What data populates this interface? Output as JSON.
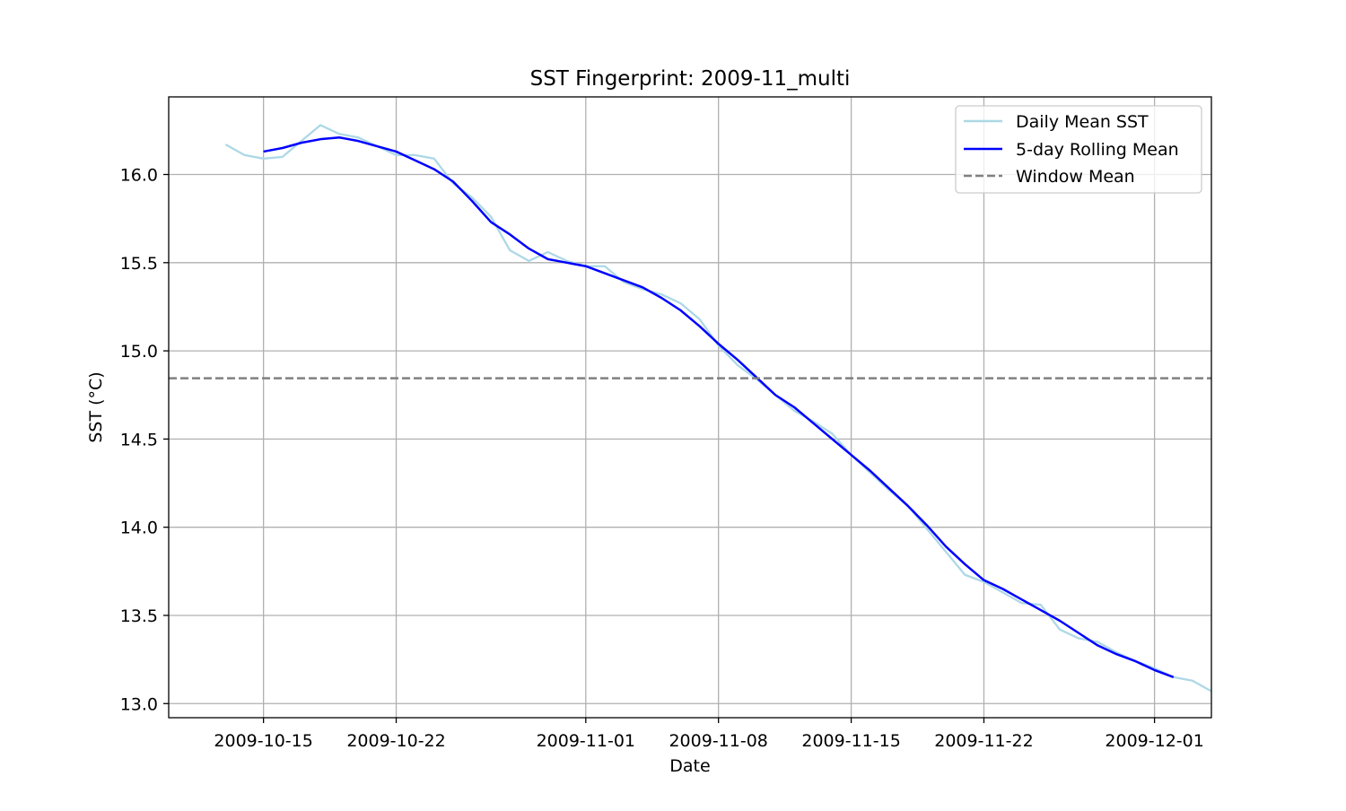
{
  "chart_data": {
    "type": "line",
    "title": "SST Fingerprint: 2009-11_multi",
    "xlabel": "Date",
    "ylabel": "SST (°C)",
    "xlim": [
      "2009-10-10",
      "2009-12-04"
    ],
    "ylim": [
      12.92,
      16.44
    ],
    "x_ticks": [
      "2009-10-15",
      "2009-10-22",
      "2009-11-01",
      "2009-11-08",
      "2009-11-15",
      "2009-11-22",
      "2009-12-01"
    ],
    "y_ticks": [
      13.0,
      13.5,
      14.0,
      14.5,
      15.0,
      15.5,
      16.0
    ],
    "y_tick_labels": [
      "13.0",
      "13.5",
      "14.0",
      "14.5",
      "15.0",
      "15.5",
      "16.0"
    ],
    "grid": true,
    "legend_position": "top-right",
    "series": [
      {
        "name": "Daily Mean SST",
        "color": "#add8e6",
        "style": "solid",
        "x": [
          "2009-10-13",
          "2009-10-14",
          "2009-10-15",
          "2009-10-16",
          "2009-10-17",
          "2009-10-18",
          "2009-10-19",
          "2009-10-20",
          "2009-10-21",
          "2009-10-22",
          "2009-10-23",
          "2009-10-24",
          "2009-10-25",
          "2009-10-26",
          "2009-10-27",
          "2009-10-28",
          "2009-10-29",
          "2009-10-30",
          "2009-10-31",
          "2009-11-01",
          "2009-11-02",
          "2009-11-03",
          "2009-11-04",
          "2009-11-05",
          "2009-11-06",
          "2009-11-07",
          "2009-11-08",
          "2009-11-09",
          "2009-11-10",
          "2009-11-11",
          "2009-11-12",
          "2009-11-13",
          "2009-11-14",
          "2009-11-15",
          "2009-11-16",
          "2009-11-17",
          "2009-11-18",
          "2009-11-19",
          "2009-11-20",
          "2009-11-21",
          "2009-11-22",
          "2009-11-23",
          "2009-11-24",
          "2009-11-25",
          "2009-11-26",
          "2009-11-27",
          "2009-11-28",
          "2009-11-29",
          "2009-11-30",
          "2009-12-01",
          "2009-12-02",
          "2009-12-03",
          "2009-12-04"
        ],
        "values": [
          16.17,
          16.11,
          16.09,
          16.1,
          16.19,
          16.28,
          16.23,
          16.21,
          16.16,
          16.11,
          16.11,
          16.09,
          15.95,
          15.87,
          15.76,
          15.57,
          15.51,
          15.56,
          15.51,
          15.48,
          15.48,
          15.39,
          15.35,
          15.32,
          15.27,
          15.18,
          15.03,
          14.92,
          14.84,
          14.75,
          14.66,
          14.6,
          14.53,
          14.41,
          14.31,
          14.21,
          14.12,
          13.99,
          13.86,
          13.73,
          13.69,
          13.63,
          13.57,
          13.56,
          13.42,
          13.37,
          13.35,
          13.29,
          13.24,
          13.2,
          13.15,
          13.13,
          13.07
        ]
      },
      {
        "name": "5-day Rolling Mean",
        "color": "#0000ff",
        "style": "solid",
        "x": [
          "2009-10-15",
          "2009-10-16",
          "2009-10-17",
          "2009-10-18",
          "2009-10-19",
          "2009-10-20",
          "2009-10-21",
          "2009-10-22",
          "2009-10-23",
          "2009-10-24",
          "2009-10-25",
          "2009-10-26",
          "2009-10-27",
          "2009-10-28",
          "2009-10-29",
          "2009-10-30",
          "2009-10-31",
          "2009-11-01",
          "2009-11-02",
          "2009-11-03",
          "2009-11-04",
          "2009-11-05",
          "2009-11-06",
          "2009-11-07",
          "2009-11-08",
          "2009-11-09",
          "2009-11-10",
          "2009-11-11",
          "2009-11-12",
          "2009-11-13",
          "2009-11-14",
          "2009-11-15",
          "2009-11-16",
          "2009-11-17",
          "2009-11-18",
          "2009-11-19",
          "2009-11-20",
          "2009-11-21",
          "2009-11-22",
          "2009-11-23",
          "2009-11-24",
          "2009-11-25",
          "2009-11-26",
          "2009-11-27",
          "2009-11-28",
          "2009-11-29",
          "2009-11-30",
          "2009-12-01",
          "2009-12-02"
        ],
        "values": [
          16.13,
          16.15,
          16.18,
          16.2,
          16.21,
          16.19,
          16.16,
          16.13,
          16.08,
          16.03,
          15.96,
          15.85,
          15.73,
          15.66,
          15.58,
          15.52,
          15.5,
          15.48,
          15.44,
          15.4,
          15.36,
          15.3,
          15.23,
          15.14,
          15.04,
          14.95,
          14.85,
          14.75,
          14.68,
          14.59,
          14.5,
          14.41,
          14.32,
          14.22,
          14.12,
          14.01,
          13.89,
          13.79,
          13.7,
          13.65,
          13.59,
          13.53,
          13.47,
          13.4,
          13.33,
          13.28,
          13.24,
          13.19,
          13.15
        ]
      },
      {
        "name": "Window Mean",
        "color": "#808080",
        "style": "dashed",
        "y": 14.845
      }
    ]
  }
}
